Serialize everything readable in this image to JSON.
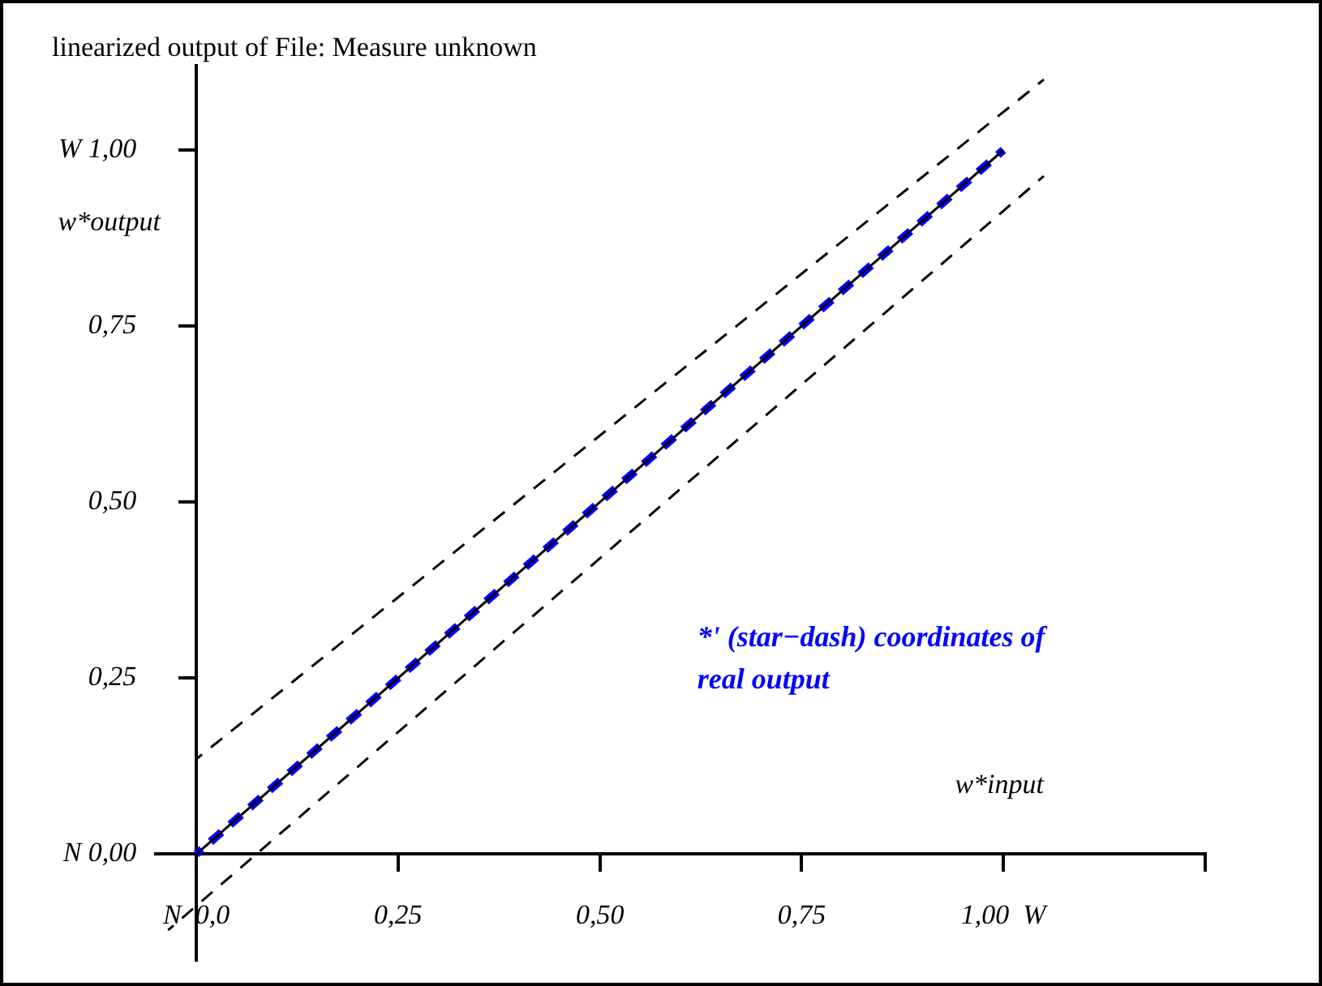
{
  "chart_data": {
    "type": "line",
    "title": "linearized output of File: Measure unknown",
    "xlabel": "w*input",
    "ylabel": "w*output",
    "annotations": [
      "*' (star−dash) coordinates of real output"
    ],
    "series": [
      {
        "color": "#000000",
        "line_style": "solid",
        "x": [
          0,
          1
        ],
        "values": [
          0,
          1
        ]
      },
      {
        "color": "#000000",
        "line_style": "dashed",
        "x": [
          0,
          1.05
        ],
        "values": [
          0.135,
          1.1
        ]
      },
      {
        "color": "#000000",
        "line_style": "dashed",
        "x": [
          -0.035,
          1.05
        ],
        "values": [
          -0.108,
          0.963
        ]
      },
      {
        "color": "#0000ff",
        "line_style": "dashed",
        "x": [
          0,
          1
        ],
        "values": [
          0,
          1
        ]
      }
    ],
    "xlim": [
      -0.05,
      1.25
    ],
    "ylim": [
      -0.15,
      1.12
    ],
    "xticks": [
      {
        "value": 0,
        "label": "N  0,0"
      },
      {
        "value": 0.25,
        "label": "0,25"
      },
      {
        "value": 0.5,
        "label": "0,50"
      },
      {
        "value": 0.75,
        "label": "0,75"
      },
      {
        "value": 1,
        "label": "1,00  W"
      },
      {
        "value": 1.25,
        "label": null
      }
    ],
    "yticks": [
      {
        "value": 0,
        "label": "N 0,00"
      },
      {
        "value": 0.25,
        "label": "0,25"
      },
      {
        "value": 0.5,
        "label": "0,50"
      },
      {
        "value": 0.75,
        "label": "0,75"
      },
      {
        "value": 1,
        "label": "W 1,00"
      }
    ],
    "grid": false,
    "legend": false,
    "marker": "none"
  }
}
